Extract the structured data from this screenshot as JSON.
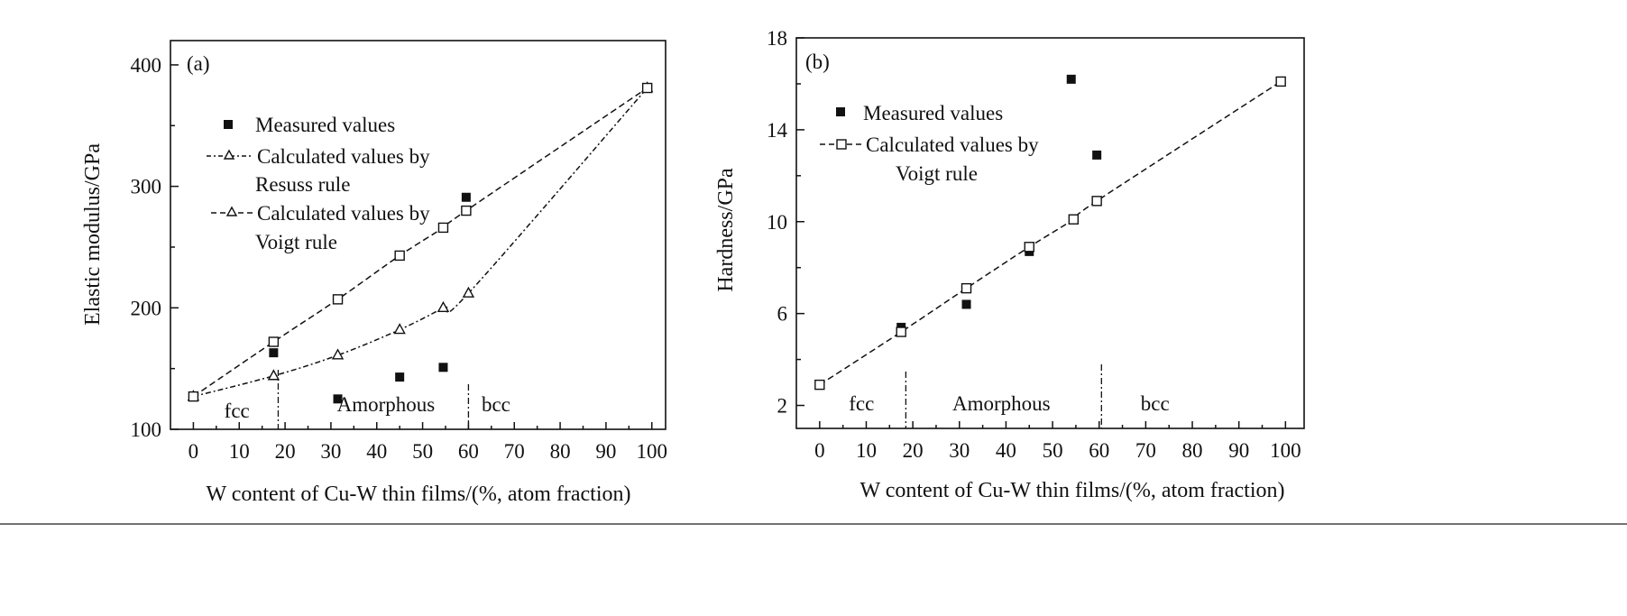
{
  "chart_data": [
    {
      "type": "line",
      "panel_label": "(a)",
      "xlabel": "W content of Cu-W thin films/(%, atom fraction)",
      "ylabel": "Elastic modulus/GPa",
      "xlim": [
        -5,
        103
      ],
      "ylim": [
        100,
        420
      ],
      "xticks": [
        0,
        10,
        20,
        30,
        40,
        50,
        60,
        70,
        80,
        90,
        100
      ],
      "yticks": [
        100,
        200,
        300,
        400
      ],
      "grid": false,
      "legend_position": "upper-left",
      "series": [
        {
          "name": "Measured values",
          "marker": "filled-square",
          "line": "none",
          "x": [
            0,
            17.5,
            31.5,
            45,
            54.5,
            59.5,
            99
          ],
          "y": [
            127,
            163,
            125,
            143,
            151,
            291,
            381
          ]
        },
        {
          "name": "Calculated values by Resuss rule",
          "marker": "open-triangle",
          "line": "dash-dot",
          "x": [
            0,
            17.5,
            31.5,
            45,
            54.5,
            60,
            99
          ],
          "y": [
            127,
            144,
            161,
            182,
            200,
            212,
            381
          ]
        },
        {
          "name": "Calculated values by Voigt rule",
          "marker": "open-square",
          "line": "dashed",
          "x": [
            0,
            17.5,
            31.5,
            45,
            54.5,
            59.5,
            99
          ],
          "y": [
            127,
            172,
            207,
            243,
            266,
            280,
            381
          ]
        }
      ],
      "regions": [
        {
          "label": "fcc",
          "x": 9.5
        },
        {
          "label": "Amorphous",
          "x": 42
        },
        {
          "label": "bcc",
          "x": 66
        }
      ],
      "boundaries": [
        18.5,
        60
      ]
    },
    {
      "type": "line",
      "panel_label": "(b)",
      "xlabel": "W content of Cu-W thin films/(%, atom fraction)",
      "ylabel": "Hardness/GPa",
      "xlim": [
        -5,
        104
      ],
      "ylim": [
        1,
        18
      ],
      "xticks": [
        0,
        10,
        20,
        30,
        40,
        50,
        60,
        70,
        80,
        90,
        100
      ],
      "yticks": [
        2,
        6,
        10,
        14,
        18
      ],
      "grid": false,
      "legend_position": "upper-left",
      "series": [
        {
          "name": "Measured values",
          "marker": "filled-square",
          "line": "none",
          "x": [
            17.5,
            31.5,
            45,
            54,
            59.5
          ],
          "y": [
            5.4,
            6.4,
            8.7,
            16.2,
            12.9
          ]
        },
        {
          "name": "Calculated values by Voigt rule",
          "marker": "open-square",
          "line": "dashed",
          "x": [
            0,
            17.5,
            31.5,
            45,
            54.5,
            59.5,
            99
          ],
          "y": [
            2.9,
            5.2,
            7.1,
            8.9,
            10.1,
            10.9,
            16.1
          ]
        }
      ],
      "regions": [
        {
          "label": "fcc",
          "x": 9
        },
        {
          "label": "Amorphous",
          "x": 39
        },
        {
          "label": "bcc",
          "x": 72
        }
      ],
      "boundaries": [
        18.5,
        60.5
      ]
    }
  ],
  "legend_a": {
    "measured": "Measured values",
    "reuss_line1": "Calculated values by",
    "reuss_line2": "Resuss rule",
    "voigt_line1": "Calculated values by",
    "voigt_line2": "Voigt rule"
  },
  "legend_b": {
    "measured": "Measured values",
    "voigt_line1": "Calculated values by",
    "voigt_line2": "Voigt rule"
  }
}
